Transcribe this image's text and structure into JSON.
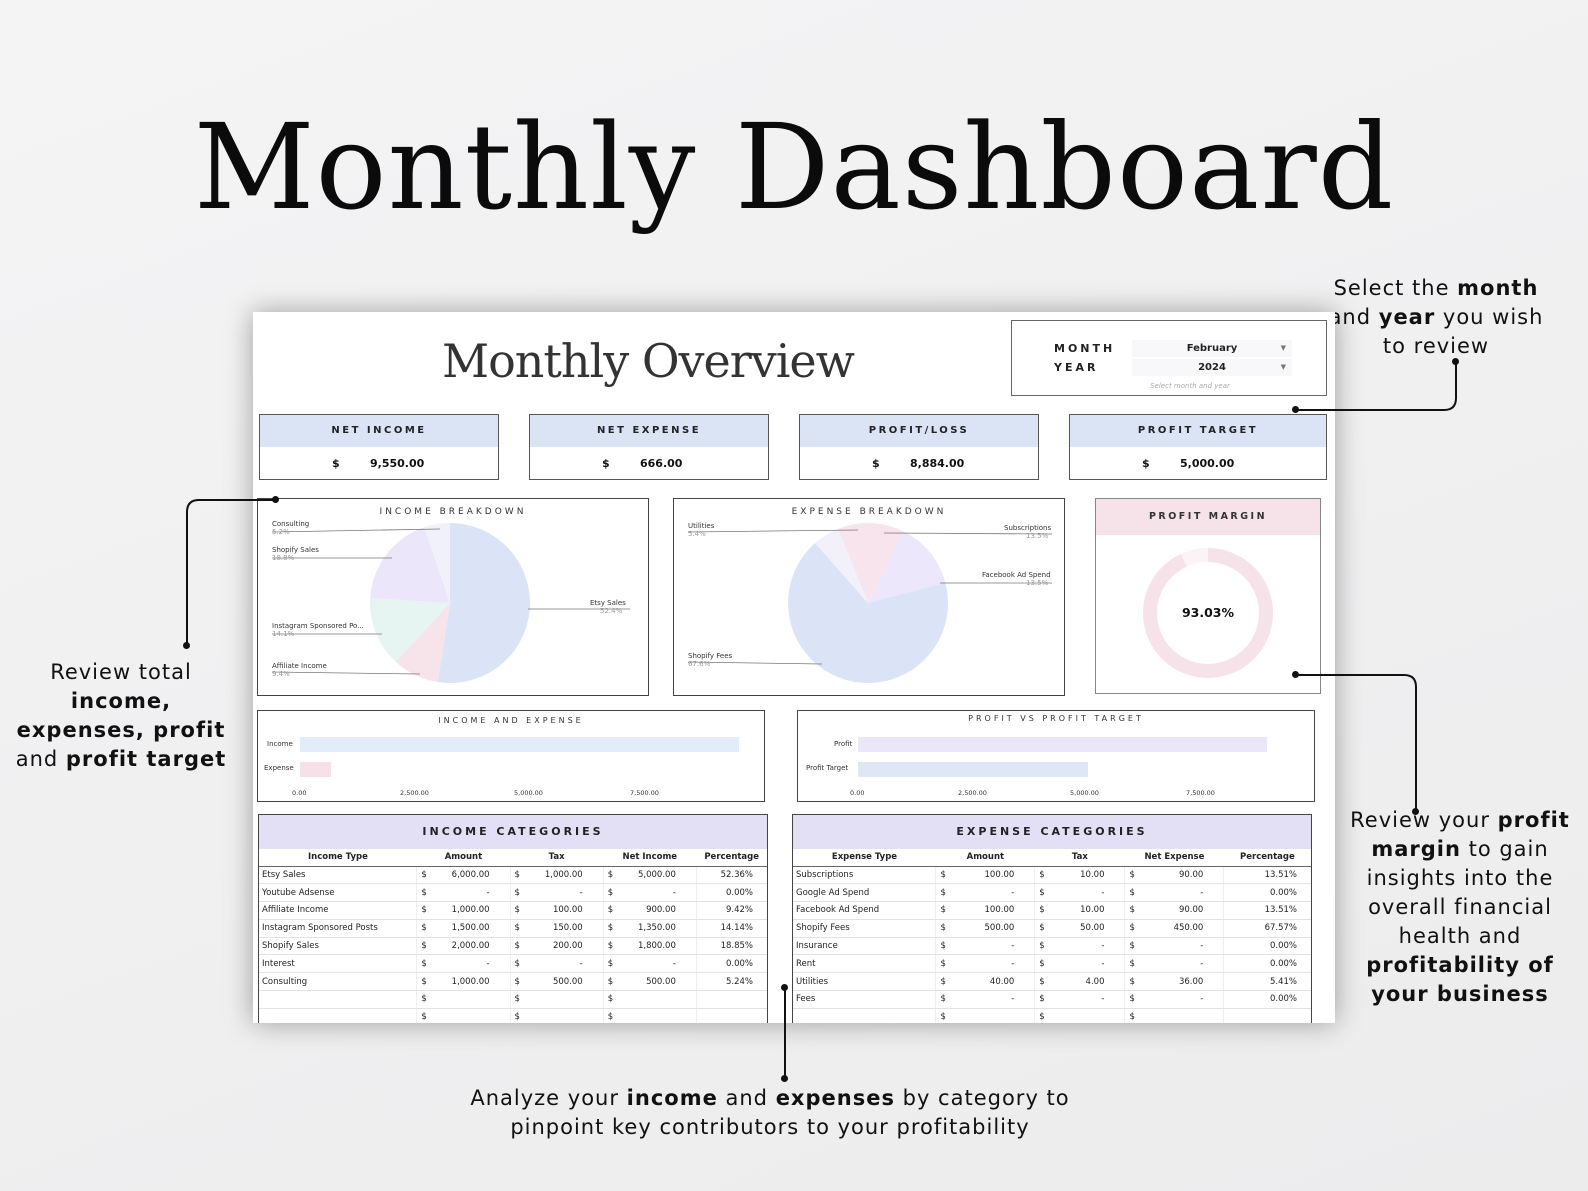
{
  "hero_title": "Monthly Dashboard",
  "notes": {
    "top_right": {
      "t1": "Select the ",
      "b1": "month",
      "t2": " and ",
      "b2": "year",
      "t3": " you wish to review"
    },
    "left": {
      "t1": "Review total ",
      "b1": "income,",
      "b2": "expenses, profit",
      "t2": " and ",
      "b3": "profit target"
    },
    "right": {
      "t1": "Review your ",
      "b1": "profit margin",
      "t2": " to gain insights into the overall financial health and ",
      "b2": "profitability of your business"
    },
    "bottom": {
      "t1": "Analyze your ",
      "b1": "income",
      "t2": " and ",
      "b2": "expenses",
      "t3": " by category to pinpoint key contributors to your profitability"
    }
  },
  "sheet": {
    "title": "Monthly Overview",
    "selector": {
      "month_label": "MONTH",
      "year_label": "YEAR",
      "month_value": "February",
      "year_value": "2024",
      "hint": "Select month and year"
    },
    "kpis": [
      {
        "label": "NET INCOME",
        "currency": "$",
        "value": "9,550.00"
      },
      {
        "label": "NET EXPENSE",
        "currency": "$",
        "value": "666.00"
      },
      {
        "label": "PROFIT/LOSS",
        "currency": "$",
        "value": "8,884.00"
      },
      {
        "label": "PROFIT TARGET",
        "currency": "$",
        "value": "5,000.00"
      }
    ],
    "income_breakdown": {
      "title": "INCOME BREAKDOWN",
      "slices": [
        {
          "name": "Etsy Sales",
          "pct": "52.4%",
          "value": 52.4,
          "color": "#dbe4f7"
        },
        {
          "name": "Affiliate Income",
          "pct": "9.4%",
          "value": 9.4,
          "color": "#f7e3ea"
        },
        {
          "name": "Instagram Sponsored Po...",
          "pct": "14.1%",
          "value": 14.1,
          "color": "#e6f5f2"
        },
        {
          "name": "Shopify Sales",
          "pct": "18.8%",
          "value": 18.8,
          "color": "#ebe6fa"
        },
        {
          "name": "Consulting",
          "pct": "5.2%",
          "value": 5.2,
          "color": "#f1f1fb"
        }
      ]
    },
    "expense_breakdown": {
      "title": "EXPENSE BREAKDOWN",
      "slices": [
        {
          "name": "Subscriptions",
          "pct": "13.5%",
          "value": 13.5,
          "color": "#f7e4ec"
        },
        {
          "name": "Facebook Ad Spend",
          "pct": "13.5%",
          "value": 13.5,
          "color": "#ece7fa"
        },
        {
          "name": "Shopify Fees",
          "pct": "67.6%",
          "value": 67.6,
          "color": "#dbe4f7"
        },
        {
          "name": "Utilities",
          "pct": "5.4%",
          "value": 5.4,
          "color": "#f2f1fb"
        }
      ]
    },
    "profit_margin": {
      "title": "PROFIT MARGIN",
      "value": "93.03%",
      "fraction": 0.9303,
      "color": "#f6e3ea"
    },
    "income_expense_chart": {
      "title": "INCOME AND EXPENSE",
      "bars": [
        {
          "name": "Income",
          "value": 9550,
          "color": "#e3ecfa"
        },
        {
          "name": "Expense",
          "value": 666,
          "color": "#f7e0e8"
        }
      ],
      "max": 10000,
      "ticks": [
        "0.00",
        "2,500.00",
        "5,000.00",
        "7,500.00"
      ]
    },
    "profit_target_chart": {
      "title": "PROFIT VS PROFIT TARGET",
      "bars": [
        {
          "name": "Profit",
          "value": 8884,
          "color": "#ece6fa"
        },
        {
          "name": "Profit Target",
          "value": 5000,
          "color": "#dfe6f6"
        }
      ],
      "max": 10000,
      "ticks": [
        "0.00",
        "2,500.00",
        "5,000.00",
        "7,500.00"
      ]
    },
    "income_table": {
      "title": "INCOME CATEGORIES",
      "headers": [
        "Income Type",
        "Amount",
        "Tax",
        "Net Income",
        "Percentage"
      ],
      "rows": [
        [
          "Etsy Sales",
          "$",
          "6,000.00",
          "$",
          "1,000.00",
          "$",
          "5,000.00",
          "52.36%"
        ],
        [
          "Youtube Adsense",
          "$",
          "-",
          "$",
          "-",
          "$",
          "-",
          "0.00%"
        ],
        [
          "Affiliate Income",
          "$",
          "1,000.00",
          "$",
          "100.00",
          "$",
          "900.00",
          "9.42%"
        ],
        [
          "Instagram Sponsored Posts",
          "$",
          "1,500.00",
          "$",
          "150.00",
          "$",
          "1,350.00",
          "14.14%"
        ],
        [
          "Shopify Sales",
          "$",
          "2,000.00",
          "$",
          "200.00",
          "$",
          "1,800.00",
          "18.85%"
        ],
        [
          "Interest",
          "$",
          "-",
          "$",
          "-",
          "$",
          "-",
          "0.00%"
        ],
        [
          "Consulting",
          "$",
          "1,000.00",
          "$",
          "500.00",
          "$",
          "500.00",
          "5.24%"
        ],
        [
          "",
          "$",
          "",
          "$",
          "",
          "$",
          "",
          ""
        ],
        [
          "",
          "$",
          "",
          "$",
          "",
          "$",
          "",
          ""
        ]
      ]
    },
    "expense_table": {
      "title": "EXPENSE CATEGORIES",
      "headers": [
        "Expense Type",
        "Amount",
        "Tax",
        "Net Expense",
        "Percentage"
      ],
      "rows": [
        [
          "Subscriptions",
          "$",
          "100.00",
          "$",
          "10.00",
          "$",
          "90.00",
          "13.51%"
        ],
        [
          "Google Ad Spend",
          "$",
          "-",
          "$",
          "-",
          "$",
          "-",
          "0.00%"
        ],
        [
          "Facebook Ad Spend",
          "$",
          "100.00",
          "$",
          "10.00",
          "$",
          "90.00",
          "13.51%"
        ],
        [
          "Shopify Fees",
          "$",
          "500.00",
          "$",
          "50.00",
          "$",
          "450.00",
          "67.57%"
        ],
        [
          "Insurance",
          "$",
          "-",
          "$",
          "-",
          "$",
          "-",
          "0.00%"
        ],
        [
          "Rent",
          "$",
          "-",
          "$",
          "-",
          "$",
          "-",
          "0.00%"
        ],
        [
          "Utilities",
          "$",
          "40.00",
          "$",
          "4.00",
          "$",
          "36.00",
          "5.41%"
        ],
        [
          "Fees",
          "$",
          "-",
          "$",
          "-",
          "$",
          "-",
          "0.00%"
        ],
        [
          "",
          "$",
          "",
          "$",
          "",
          "$",
          "",
          ""
        ]
      ]
    }
  }
}
